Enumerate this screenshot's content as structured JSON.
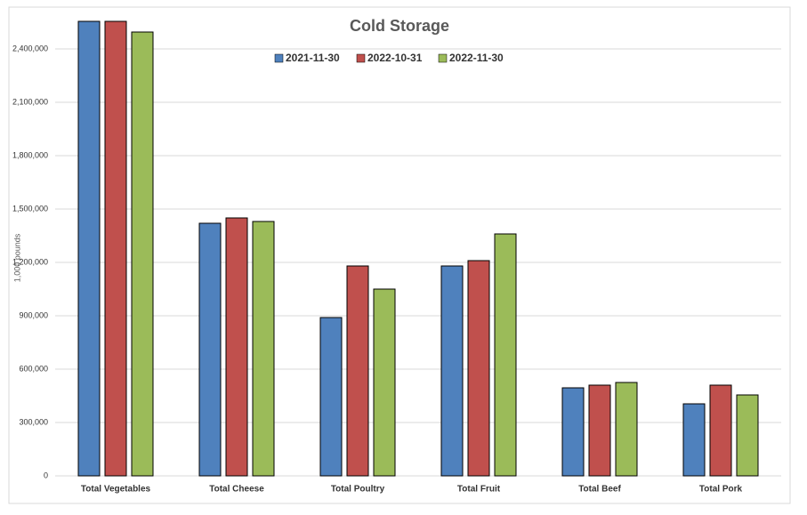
{
  "chart_data": {
    "type": "bar",
    "title": "Cold Storage",
    "y_label": "1,000 pounds",
    "categories": [
      "Total Vegetables",
      "Total Cheese",
      "Total Poultry",
      "Total Fruit",
      "Total Beef",
      "Total Pork"
    ],
    "series": [
      {
        "name": "2021-11-30",
        "color": "#4f81bd",
        "values": [
          2555000,
          1420000,
          890000,
          1180000,
          495000,
          405000
        ]
      },
      {
        "name": "2022-10-31",
        "color": "#c0504d",
        "values": [
          2555000,
          1450000,
          1180000,
          1210000,
          510000,
          510000
        ]
      },
      {
        "name": "2022-11-30",
        "color": "#9bbb59",
        "values": [
          2495000,
          1430000,
          1050000,
          1360000,
          525000,
          455000
        ]
      }
    ],
    "ylim": [
      0,
      2600000
    ],
    "yticks": [
      0,
      {
        "value": 300000,
        "label": "300,000"
      },
      {
        "value": 600000,
        "label": "600,000"
      },
      {
        "value": 900000,
        "label": "900,000"
      },
      {
        "value": 1200000,
        "label": "1,200,000"
      },
      {
        "value": 1500000,
        "label": "1,500,000"
      },
      {
        "value": 1800000,
        "label": "1,800,000"
      },
      {
        "value": 2100000,
        "label": "2,100,000"
      },
      {
        "value": 2400000,
        "label": "2,400,000"
      }
    ],
    "grid": true,
    "legend": "top"
  }
}
